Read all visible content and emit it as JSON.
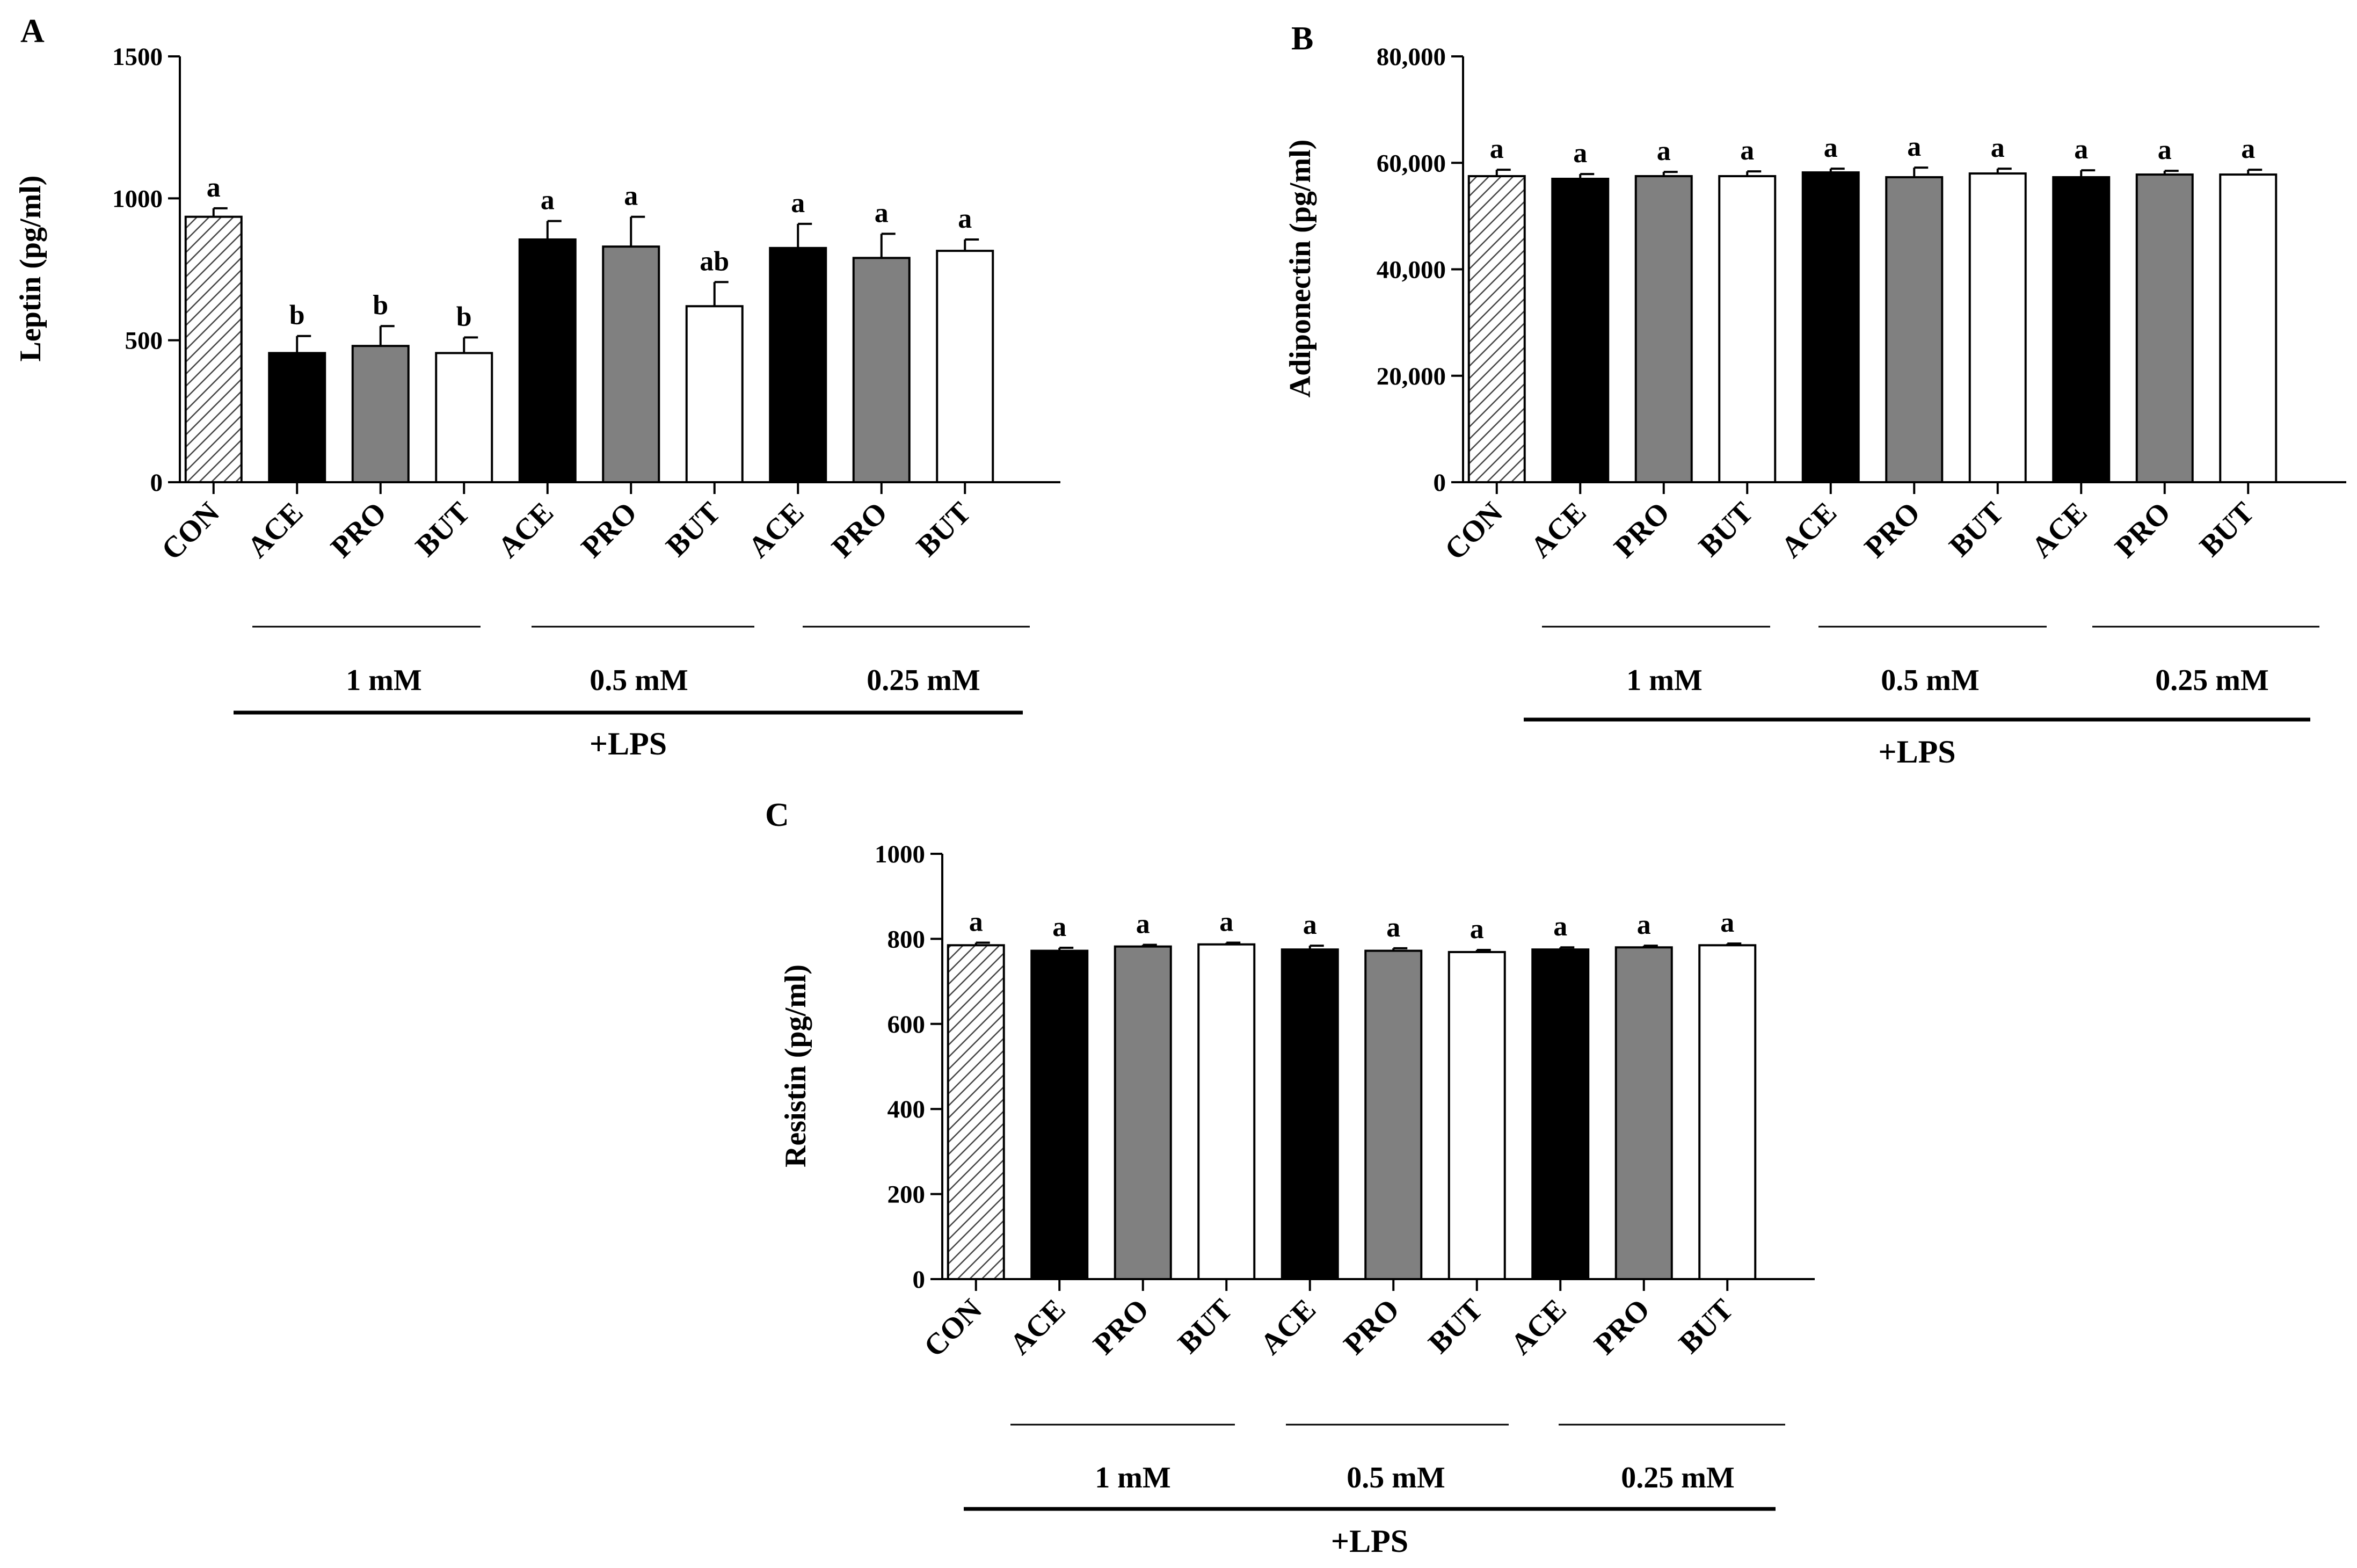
{
  "colors": {
    "ace": "#000000",
    "pro": "#808080",
    "but": "#ffffff",
    "con_fill": "#ffffff",
    "con_hatch": "#444444",
    "stroke": "#000000"
  },
  "categories": [
    "CON",
    "ACE",
    "PRO",
    "BUT",
    "ACE",
    "PRO",
    "BUT",
    "ACE",
    "PRO",
    "BUT"
  ],
  "groups": {
    "dose_1": "1 mM",
    "dose_2": "0.5 mM",
    "dose_3": "0.25 mM",
    "treatment": "+LPS"
  },
  "chart_data": [
    {
      "panel": "A",
      "type": "bar",
      "ylabel": "Leptin (pg/ml)",
      "ylim": [
        0,
        1500
      ],
      "yticks": [
        "0",
        "500",
        "1000",
        "1500"
      ],
      "values": [
        935,
        455,
        480,
        455,
        855,
        830,
        620,
        825,
        790,
        815
      ],
      "errors": [
        30,
        60,
        70,
        55,
        65,
        105,
        85,
        85,
        85,
        40
      ],
      "significance": [
        "a",
        "b",
        "b",
        "b",
        "a",
        "a",
        "ab",
        "a",
        "a",
        "a"
      ]
    },
    {
      "panel": "B",
      "type": "bar",
      "ylabel": "Adiponectin (pg/ml)",
      "ylim": [
        0,
        80000
      ],
      "yticks": [
        "0",
        "20,000",
        "40,000",
        "60,000",
        "80,000"
      ],
      "values": [
        57500,
        57000,
        57500,
        57500,
        58200,
        57300,
        58000,
        57300,
        57800,
        57800
      ],
      "errors": [
        1200,
        900,
        800,
        900,
        700,
        1800,
        900,
        1300,
        700,
        900
      ],
      "significance": [
        "a",
        "a",
        "a",
        "a",
        "a",
        "a",
        "a",
        "a",
        "a",
        "a"
      ]
    },
    {
      "panel": "C",
      "type": "bar",
      "ylabel": "Resistin (pg/ml)",
      "ylim": [
        0,
        1000
      ],
      "yticks": [
        "0",
        "200",
        "400",
        "600",
        "800",
        "1000"
      ],
      "values": [
        785,
        772,
        782,
        787,
        775,
        772,
        769,
        775,
        780,
        785
      ],
      "errors": [
        6,
        7,
        4,
        4,
        9,
        6,
        5,
        5,
        4,
        4
      ],
      "significance": [
        "a",
        "a",
        "a",
        "a",
        "a",
        "a",
        "a",
        "a",
        "a",
        "a"
      ]
    }
  ]
}
